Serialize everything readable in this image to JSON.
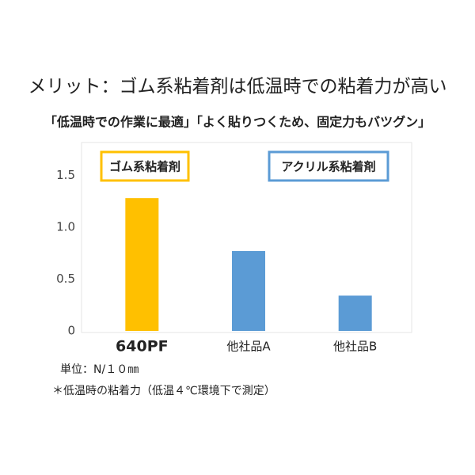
{
  "chart_data": {
    "type": "bar",
    "title": "メリット：ゴム系粘着剤は低温時での粘着力が高い",
    "subtitle": "「低温時での作業に最適」「よく貼りつくため、固定力もバツグン」",
    "categories": [
      "640PF",
      "他社品A",
      "他社品B"
    ],
    "values": [
      1.28,
      0.77,
      0.34
    ],
    "colors": [
      "#ffc000",
      "#5b9bd5",
      "#5b9bd5"
    ],
    "ylim": [
      0,
      1.8
    ],
    "yticks": [
      0,
      0.5,
      {
        "value": 1,
        "label": "1.0"
      },
      1.5
    ],
    "annotations": [
      {
        "text": "ゴム系粘着剤",
        "color": "#e0242b",
        "border": "#ffc000"
      },
      {
        "text": "アクリル系粘着剤",
        "color": "#111111",
        "border": "#5b9bd5"
      }
    ],
    "unit_note": "単位：N/１０㎜",
    "footnote": "＊低温時の粘着力（低温４℃環境下で測定）"
  }
}
